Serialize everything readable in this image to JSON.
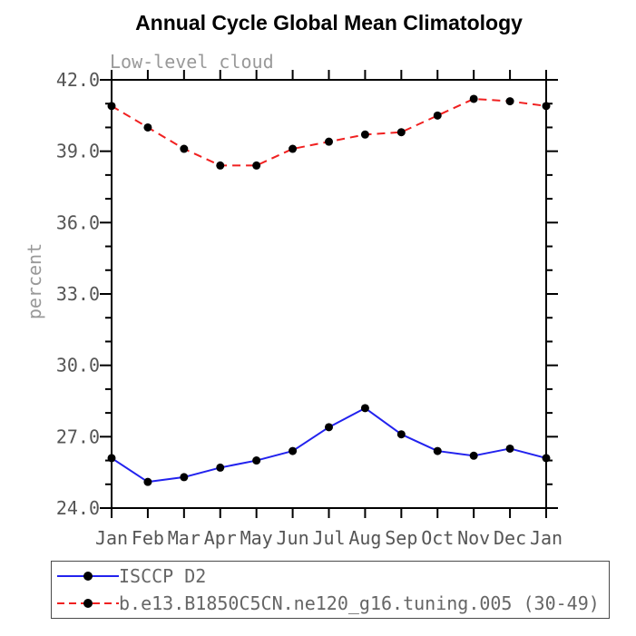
{
  "chart_data": {
    "type": "line",
    "title": "Annual Cycle Global Mean Climatology",
    "subtitle": "Low-level cloud",
    "xlabel": "",
    "ylabel": "percent",
    "x_categories": [
      "Jan",
      "Feb",
      "Mar",
      "Apr",
      "May",
      "Jun",
      "Jul",
      "Aug",
      "Sep",
      "Oct",
      "Nov",
      "Dec",
      "Jan"
    ],
    "ylim": [
      24.0,
      42.0
    ],
    "y_major_tick_step": 3.0,
    "y_minor_tick_step": 1.0,
    "y_tick_labels": [
      "24.0",
      "27.0",
      "30.0",
      "33.0",
      "36.0",
      "39.0",
      "42.0"
    ],
    "grid": false,
    "legend_position": "bottom-left-outside",
    "series": [
      {
        "name": "ISCCP D2",
        "line_style": "solid",
        "color": "#2222ee",
        "marker": "filled-circle",
        "marker_color": "#000000",
        "values": [
          26.1,
          25.1,
          25.3,
          25.7,
          26.0,
          26.4,
          27.4,
          28.2,
          27.1,
          26.4,
          26.2,
          26.5,
          26.1
        ]
      },
      {
        "name": "b.e13.B1850C5CN.ne120_g16.tuning.005 (30-49)",
        "line_style": "dashed",
        "color": "#f02020",
        "marker": "filled-circle",
        "marker_color": "#000000",
        "values": [
          40.9,
          40.0,
          39.1,
          38.4,
          38.4,
          39.1,
          39.4,
          39.7,
          39.8,
          40.5,
          41.2,
          41.1,
          40.9
        ]
      }
    ]
  },
  "colors": {
    "background": "#ffffff",
    "axis": "#000000",
    "tick_label_text": "#555555",
    "subtitle_text": "#999999",
    "legend_text": "#666666",
    "legend_border": "#4a4a4a"
  }
}
